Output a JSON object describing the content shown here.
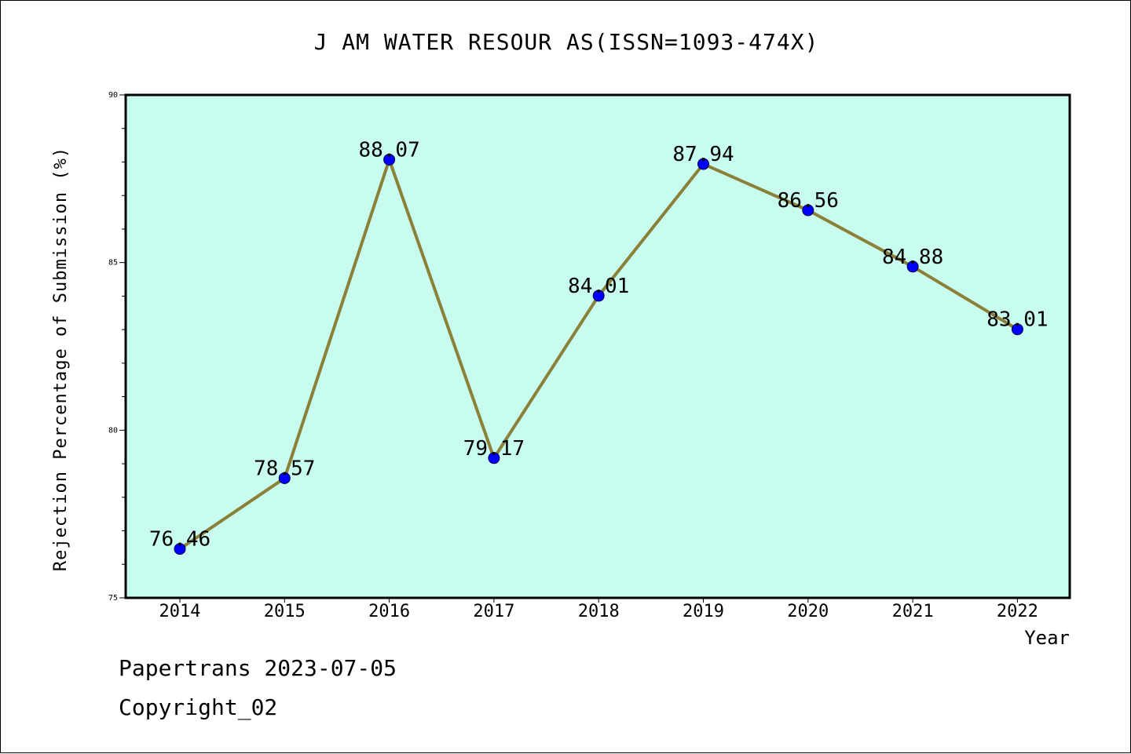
{
  "title": "J AM WATER RESOUR AS(ISSN=1093-474X)",
  "footer": {
    "date": "Papertrans 2023-07-05",
    "copyright": "Copyright_02"
  },
  "chart_data": {
    "type": "line",
    "title": "J AM WATER RESOUR AS(ISSN=1093-474X)",
    "xlabel": "Year",
    "ylabel": "Rejection Percentage of Submission (%)",
    "categories": [
      "2014",
      "2015",
      "2016",
      "2017",
      "2018",
      "2019",
      "2020",
      "2021",
      "2022"
    ],
    "values": [
      76.46,
      78.57,
      88.07,
      79.17,
      84.01,
      87.94,
      86.56,
      84.88,
      83.01
    ],
    "data_labels": [
      "76.46",
      "78.57",
      "88.07",
      "79.17",
      "84.01",
      "87.94",
      "86.56",
      "84.88",
      "83.01"
    ],
    "ylim": [
      75,
      90
    ],
    "yticks": [
      "75",
      "80",
      "85",
      "90"
    ],
    "grid": false,
    "colors": {
      "plot_background": "#c8fcee",
      "line": "#8b8038",
      "marker": "#0000ff"
    }
  }
}
